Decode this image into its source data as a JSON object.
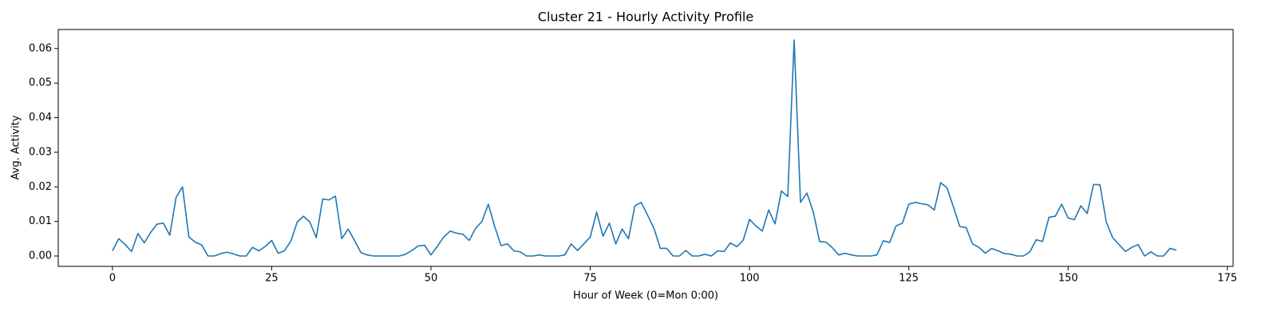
{
  "chart_data": {
    "type": "line",
    "title": "Cluster 21 - Hourly Activity Profile",
    "x_label": "Hour of Week (0=Mon 0:00)",
    "y_label": "Avg. Activity",
    "x": [
      0,
      1,
      2,
      3,
      4,
      5,
      6,
      7,
      8,
      9,
      10,
      11,
      12,
      13,
      14,
      15,
      16,
      17,
      18,
      19,
      20,
      21,
      22,
      23,
      24,
      25,
      26,
      27,
      28,
      29,
      30,
      31,
      32,
      33,
      34,
      35,
      36,
      37,
      38,
      39,
      40,
      41,
      42,
      43,
      44,
      45,
      46,
      47,
      48,
      49,
      50,
      51,
      52,
      53,
      54,
      55,
      56,
      57,
      58,
      59,
      60,
      61,
      62,
      63,
      64,
      65,
      66,
      67,
      68,
      69,
      70,
      71,
      72,
      73,
      74,
      75,
      76,
      77,
      78,
      79,
      80,
      81,
      82,
      83,
      84,
      85,
      86,
      87,
      88,
      89,
      90,
      91,
      92,
      93,
      94,
      95,
      96,
      97,
      98,
      99,
      100,
      101,
      102,
      103,
      104,
      105,
      106,
      107,
      108,
      109,
      110,
      111,
      112,
      113,
      114,
      115,
      116,
      117,
      118,
      119,
      120,
      121,
      122,
      123,
      124,
      125,
      126,
      127,
      128,
      129,
      130,
      131,
      132,
      133,
      134,
      135,
      136,
      137,
      138,
      139,
      140,
      141,
      142,
      143,
      144,
      145,
      146,
      147,
      148,
      149,
      150,
      151,
      152,
      153,
      154,
      155,
      156,
      157,
      158,
      159,
      160,
      161,
      162,
      163,
      164,
      165,
      166,
      167
    ],
    "series": [
      {
        "color": "#1f77b4",
        "values": [
          0.0015,
          0.005,
          0.0033,
          0.0013,
          0.0065,
          0.0038,
          0.0068,
          0.0092,
          0.0095,
          0.006,
          0.017,
          0.02,
          0.0055,
          0.004,
          0.0032,
          0,
          0,
          0.0007,
          0.0011,
          0.0006,
          0,
          0,
          0.0025,
          0.0015,
          0.0028,
          0.0045,
          0.0008,
          0.0015,
          0.0043,
          0.0098,
          0.0115,
          0.0098,
          0.0053,
          0.0165,
          0.0162,
          0.0173,
          0.005,
          0.0078,
          0.0045,
          0.001,
          0.0003,
          0,
          0,
          0,
          0,
          0,
          0.0005,
          0.0016,
          0.0029,
          0.0031,
          0.0003,
          0.0028,
          0.0055,
          0.0072,
          0.0066,
          0.0063,
          0.0045,
          0.008,
          0.01,
          0.015,
          0.0085,
          0.003,
          0.0035,
          0.0015,
          0.0012,
          0,
          0,
          0.0003,
          0,
          0,
          0,
          0.0003,
          0.0035,
          0.0016,
          0.0035,
          0.0055,
          0.0127,
          0.0057,
          0.0095,
          0.0035,
          0.0078,
          0.005,
          0.0145,
          0.0155,
          0.0118,
          0.008,
          0.0022,
          0.0022,
          0,
          0,
          0.0016,
          0,
          0,
          0.0005,
          0,
          0.0015,
          0.0013,
          0.0038,
          0.0027,
          0.0045,
          0.0106,
          0.0087,
          0.0072,
          0.0133,
          0.0093,
          0.0188,
          0.0172,
          0.0625,
          0.0155,
          0.0182,
          0.0128,
          0.0042,
          0.004,
          0.0024,
          0.0003,
          0.0008,
          0.0003,
          0,
          0,
          0,
          0.0003,
          0.0044,
          0.0039,
          0.0087,
          0.0095,
          0.015,
          0.0155,
          0.0151,
          0.0148,
          0.0133,
          0.0212,
          0.0197,
          0.0142,
          0.0085,
          0.0082,
          0.0035,
          0.0025,
          0.0008,
          0.0022,
          0.0015,
          0.0007,
          0.0005,
          0,
          0,
          0.0012,
          0.0047,
          0.0042,
          0.0112,
          0.0115,
          0.015,
          0.011,
          0.0105,
          0.0145,
          0.0123,
          0.0207,
          0.0206,
          0.0098,
          0.0053,
          0.0033,
          0.0013,
          0.0025,
          0.0033,
          0,
          0.0012,
          0,
          0,
          0.0022,
          0.0017
        ]
      }
    ],
    "xlim": [
      -8.5,
      175.9
    ],
    "ylim": [
      -0.003,
      0.0655
    ],
    "xticks": [
      0,
      25,
      50,
      75,
      100,
      125,
      150,
      175
    ],
    "yticks": [
      {
        "value": 0,
        "label": "0.00"
      },
      0.01,
      0.02,
      0.03,
      0.04,
      0.05,
      0.06
    ],
    "grid": false
  }
}
